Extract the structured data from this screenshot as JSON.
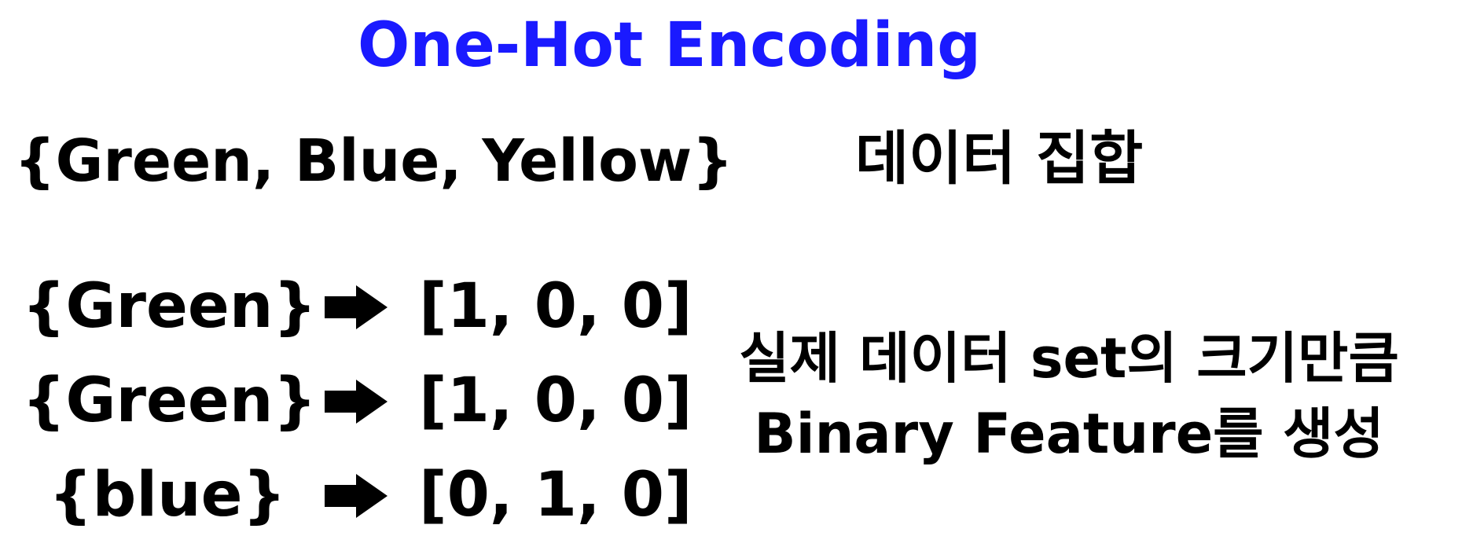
{
  "title": "One-Hot Encoding",
  "accent_color": "#1a1aff",
  "category_set": "{Green, Blue, Yellow}",
  "set_label": "데이터 집합",
  "encodings": [
    {
      "item": "{Green}",
      "vector": "[1, 0, 0]"
    },
    {
      "item": "{Green}",
      "vector": "[1, 0, 0]"
    },
    {
      "item": "{blue}",
      "vector": "[0, 1, 0]"
    }
  ],
  "arrow_icon": "right-arrow-icon",
  "description": {
    "line1": "실제 데이터 set의 크기만큼",
    "line2": "Binary Feature를 생성"
  }
}
